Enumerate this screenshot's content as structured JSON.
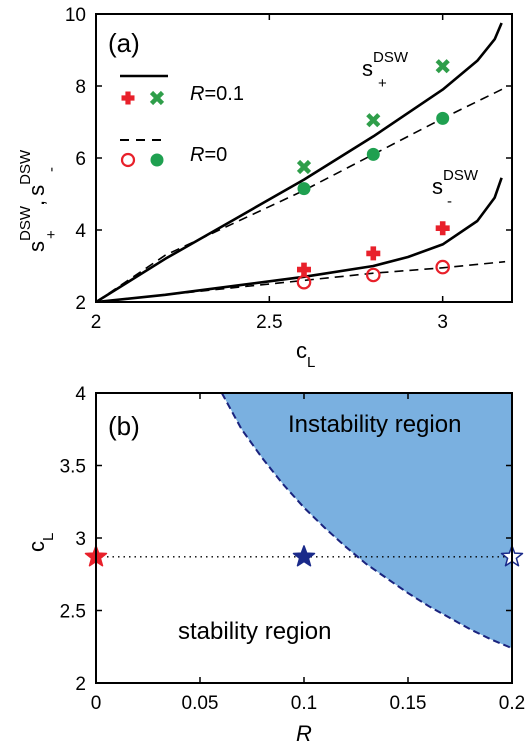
{
  "chart_data": [
    {
      "panel": "(a)",
      "type": "line",
      "xlabel": "c",
      "xlabel_sub": "L",
      "ylabel": {
        "s1": "s",
        "s1_sub": "+",
        "s1_sup": "DSW",
        "sep": ",",
        "s2": "s",
        "s2_sub": "-",
        "s2_sup": "DSW"
      },
      "xlim": [
        2,
        3.2
      ],
      "ylim": [
        2,
        10
      ],
      "xticks": [
        "2",
        "2.5",
        "3"
      ],
      "yticks": [
        "2",
        "4",
        "6",
        "8",
        "10"
      ],
      "curve_labels": {
        "plus": {
          "base": "s",
          "sub": "+",
          "sup": "DSW"
        },
        "minus": {
          "base": "s",
          "sub": "-",
          "sup": "DSW"
        }
      },
      "legend": [
        {
          "line": "solid",
          "symbols": [
            "plus",
            "cross"
          ],
          "label_var": "R",
          "label_value": "=0.1"
        },
        {
          "line": "dashed",
          "symbols": [
            "open-circle",
            "filled-circle"
          ],
          "label_var": "R",
          "label_value": "=0"
        }
      ],
      "series": [
        {
          "key": "R=0.1 s+",
          "style": "solid",
          "color": "#000000",
          "x": [
            2.0,
            2.2,
            2.4,
            2.6,
            2.8,
            3.0,
            3.1,
            3.15,
            3.17
          ],
          "y": [
            2.0,
            3.2,
            4.3,
            5.4,
            6.6,
            7.9,
            8.7,
            9.3,
            9.75
          ]
        },
        {
          "key": "R=0 s+",
          "style": "dashed",
          "color": "#000000",
          "x": [
            2.0,
            2.2,
            2.4,
            2.6,
            2.8,
            3.0,
            3.18
          ],
          "y": [
            2.0,
            3.3,
            4.2,
            5.1,
            6.1,
            7.1,
            7.95
          ]
        },
        {
          "key": "R=0.1 s-",
          "style": "solid",
          "color": "#000000",
          "x": [
            2.0,
            2.2,
            2.4,
            2.6,
            2.8,
            2.9,
            3.0,
            3.1,
            3.15,
            3.17
          ],
          "y": [
            2.0,
            2.2,
            2.45,
            2.7,
            3.0,
            3.25,
            3.6,
            4.25,
            4.9,
            5.45
          ]
        },
        {
          "key": "R=0 s-",
          "style": "dashed",
          "color": "#000000",
          "x": [
            2.0,
            2.2,
            2.4,
            2.6,
            2.8,
            3.0,
            3.18
          ],
          "y": [
            2.0,
            2.2,
            2.4,
            2.6,
            2.8,
            2.95,
            3.12
          ]
        }
      ],
      "markers": [
        {
          "key": "R=0.1 s+ points",
          "shape": "cross",
          "color": "#2f9e4a",
          "x": [
            2.6,
            2.8,
            3.0
          ],
          "y": [
            5.75,
            7.05,
            8.55
          ]
        },
        {
          "key": "R=0 s+ points",
          "shape": "filled-circle",
          "color": "#1fa050",
          "x": [
            2.6,
            2.8,
            3.0
          ],
          "y": [
            5.15,
            6.1,
            7.1
          ]
        },
        {
          "key": "R=0.1 s- points",
          "shape": "plus",
          "color": "#e8202a",
          "x": [
            2.6,
            2.8,
            3.0
          ],
          "y": [
            2.9,
            3.35,
            4.05
          ]
        },
        {
          "key": "R=0 s- points",
          "shape": "open-circle",
          "color": "#e8202a",
          "x": [
            2.6,
            2.8,
            3.0
          ],
          "y": [
            2.55,
            2.75,
            2.97
          ]
        }
      ]
    },
    {
      "panel": "(b)",
      "type": "area",
      "xlabel": "R",
      "ylabel": "c",
      "ylabel_sub": "L",
      "xlim": [
        0,
        0.2
      ],
      "ylim": [
        2,
        4
      ],
      "xticks": [
        "0",
        "0.05",
        "0.1",
        "0.15",
        "0.2"
      ],
      "yticks": [
        "2",
        "2.5",
        "3",
        "3.5",
        "4"
      ],
      "region_labels": {
        "instability": "Instability region",
        "stability": "stability region"
      },
      "region_color": "#7ab0e0",
      "boundary_color": "#1a237e",
      "boundary": {
        "x": [
          0.0605,
          0.07,
          0.08,
          0.09,
          0.1,
          0.11,
          0.12,
          0.13,
          0.14,
          0.15,
          0.16,
          0.17,
          0.18,
          0.19,
          0.2
        ],
        "y": [
          4.0,
          3.75,
          3.55,
          3.37,
          3.21,
          3.07,
          2.94,
          2.82,
          2.72,
          2.62,
          2.53,
          2.45,
          2.37,
          2.3,
          2.24
        ]
      },
      "dotted_line_y": 2.87,
      "stars": [
        {
          "x": 0.0,
          "y": 2.87,
          "fill": "#e8202a",
          "stroke": "#e8202a"
        },
        {
          "x": 0.1,
          "y": 2.87,
          "fill": "#1a2a8a",
          "stroke": "#1a2a8a"
        },
        {
          "x": 0.2,
          "y": 2.87,
          "fill": "#ffffff",
          "stroke": "#1a2a8a"
        }
      ]
    }
  ]
}
